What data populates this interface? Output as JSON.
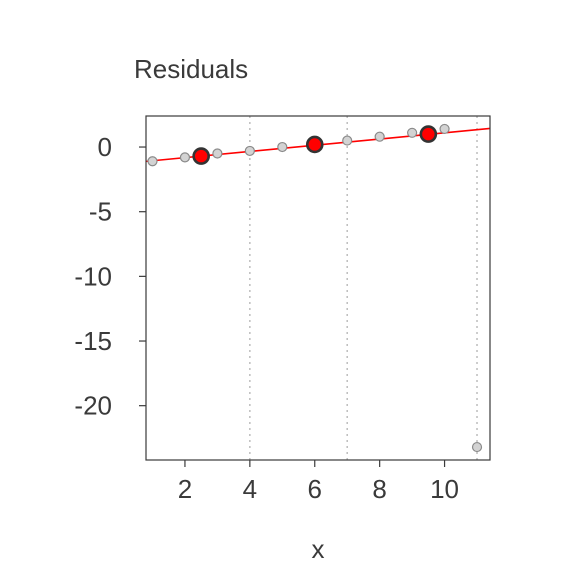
{
  "chart_data": {
    "type": "scatter",
    "title": "Residuals",
    "xlabel": "x",
    "ylabel": "",
    "xlim": [
      0.8,
      11.4
    ],
    "ylim": [
      -24.2,
      2.4
    ],
    "xticks": [
      2,
      4,
      6,
      8,
      10
    ],
    "yticks": [
      0,
      -5,
      -10,
      -15,
      -20
    ],
    "vlines": [
      4,
      7,
      11
    ],
    "points": [
      {
        "x": 1,
        "y": -1.1
      },
      {
        "x": 2,
        "y": -0.8
      },
      {
        "x": 3,
        "y": -0.5
      },
      {
        "x": 4,
        "y": -0.3
      },
      {
        "x": 5,
        "y": 0.0
      },
      {
        "x": 6,
        "y": 0.2
      },
      {
        "x": 7,
        "y": 0.5
      },
      {
        "x": 8,
        "y": 0.8
      },
      {
        "x": 9,
        "y": 1.1
      },
      {
        "x": 10,
        "y": 1.4
      },
      {
        "x": 11,
        "y": -23.2
      }
    ],
    "highlight_points": [
      {
        "x": 2.5,
        "y": -0.7
      },
      {
        "x": 6,
        "y": 0.2
      },
      {
        "x": 9.5,
        "y": 1.0
      }
    ],
    "fit_line": {
      "intercept": -1.3,
      "slope": 0.24
    },
    "colors": {
      "points_fill": "#d3d3d3",
      "points_stroke": "#8a8a8a",
      "highlight_fill": "#ff0000",
      "highlight_stroke": "#333333",
      "fit_line": "#ff0000",
      "vline": "#bdbdbd",
      "text": "#3a3a3a"
    }
  }
}
